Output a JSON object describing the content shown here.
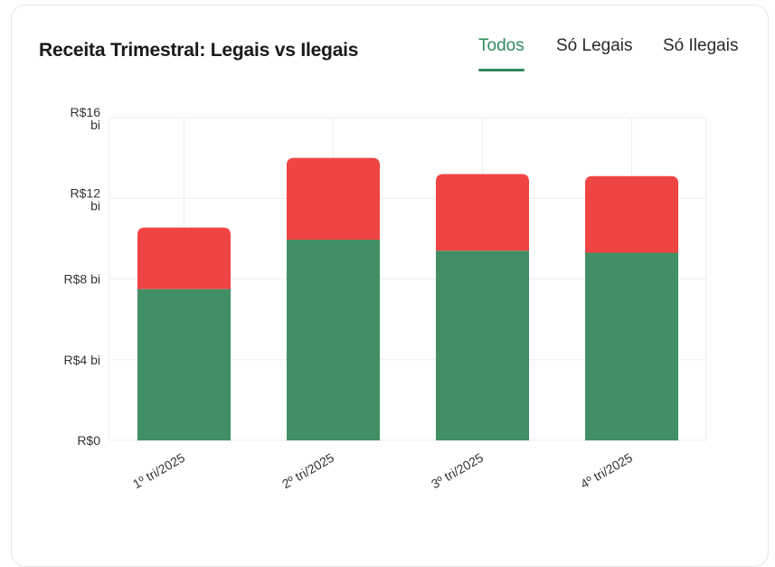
{
  "card": {
    "title": "Receita Trimestral: Legais vs Ilegais",
    "tabs": [
      {
        "label": "Todos",
        "active": true
      },
      {
        "label": "Só Legais",
        "active": false
      },
      {
        "label": "Só Ilegais",
        "active": false
      }
    ]
  },
  "chart_data": {
    "type": "bar",
    "stacked": true,
    "title": "Receita Trimestral: Legais vs Ilegais",
    "categories": [
      "1º tri/2025",
      "2º tri/2025",
      "3º tri/2025",
      "4º tri/2025"
    ],
    "series": [
      {
        "key": "legais",
        "color": "#428f66",
        "values": [
          7.5,
          9.95,
          9.4,
          9.3
        ]
      },
      {
        "key": "ilegais",
        "color": "#ef4444",
        "values": [
          3.05,
          4.05,
          3.8,
          3.8
        ]
      }
    ],
    "ylim": [
      0,
      16
    ],
    "yticks": [
      {
        "value": 0,
        "label": [
          "R$0"
        ]
      },
      {
        "value": 4,
        "label": [
          "R$4 bi"
        ]
      },
      {
        "value": 8,
        "label": [
          "R$8 bi"
        ]
      },
      {
        "value": 12,
        "label": [
          "R$12",
          "bi"
        ]
      },
      {
        "value": 16,
        "label": [
          "R$16",
          "bi"
        ]
      }
    ],
    "xlabel": "",
    "ylabel": "",
    "grid": true,
    "legend": "none"
  }
}
